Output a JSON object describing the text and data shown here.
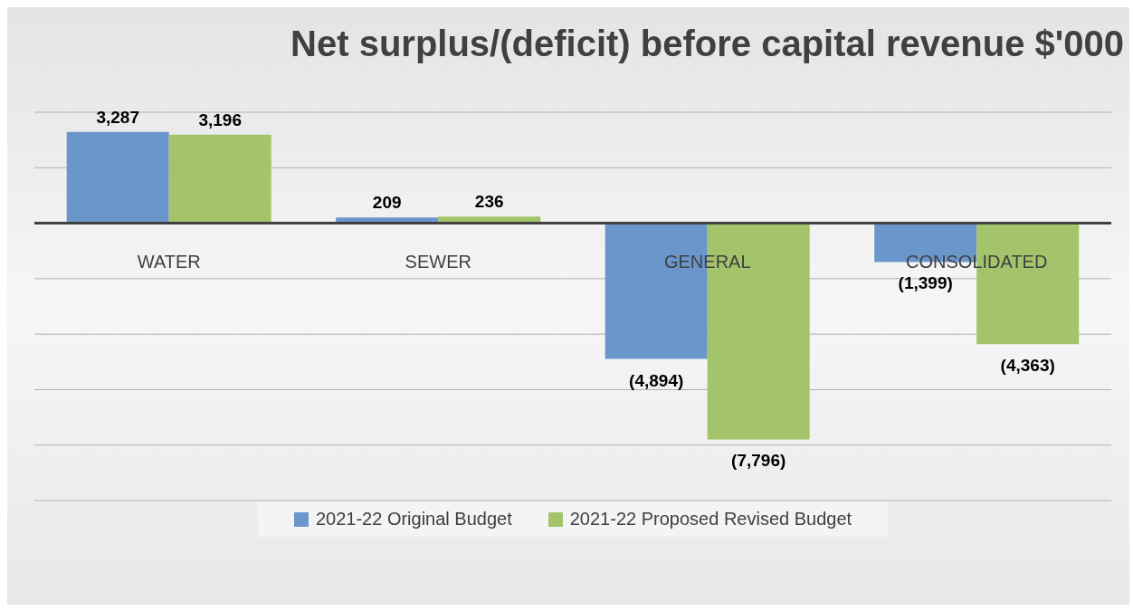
{
  "chart_data": {
    "type": "bar",
    "title": "Net surplus/(deficit) before capital revenue $'000",
    "categories": [
      "WATER",
      "SEWER",
      "GENERAL",
      "CONSOLIDATED"
    ],
    "series": [
      {
        "name": "2021-22 Original Budget",
        "color": "#6a96cc",
        "values": [
          3287,
          209,
          -4894,
          -1399
        ],
        "value_labels": [
          "3,287",
          "209",
          "(4,894)",
          "(1,399)"
        ]
      },
      {
        "name": "2021-22 Proposed Revised Budget",
        "color": "#a3c46b",
        "values": [
          3196,
          236,
          -7796,
          -4363
        ],
        "value_labels": [
          "3,196",
          "236",
          "(7,796)",
          "(4,363)"
        ]
      }
    ],
    "ylim": [
      -10000,
      4000
    ],
    "yticks": [
      {
        "value": -10000,
        "label": null
      },
      {
        "value": -8000,
        "label": null
      },
      {
        "value": -6000,
        "label": null
      },
      {
        "value": -4000,
        "label": null
      },
      {
        "value": -2000,
        "label": null
      },
      {
        "value": 0,
        "label": null
      },
      {
        "value": 2000,
        "label": null
      },
      {
        "value": 4000,
        "label": null
      }
    ],
    "grid": "y",
    "tick_labels": "x",
    "legend": "bottom"
  }
}
